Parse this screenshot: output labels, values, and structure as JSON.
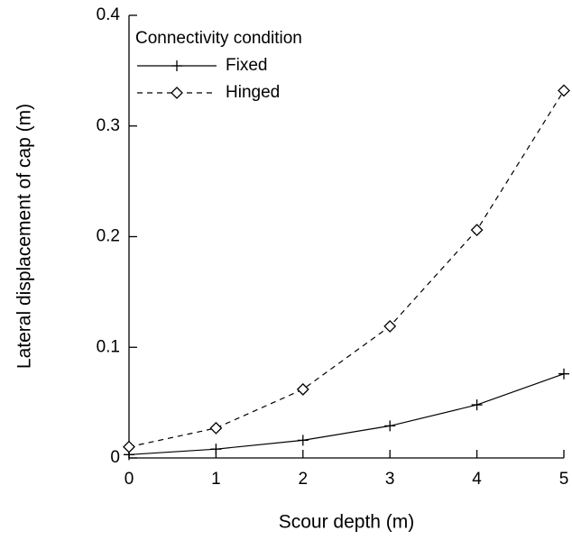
{
  "chart_data": {
    "type": "line",
    "x_label": "Scour depth (m)",
    "y_label": "Lateral displacement of cap (m)",
    "x": [
      0,
      1,
      2,
      3,
      4,
      5
    ],
    "series": [
      {
        "name": "Fixed",
        "color": "#000000",
        "line_style": "solid",
        "marker": "plus",
        "values": [
          0.003,
          0.008,
          0.016,
          0.029,
          0.048,
          0.076
        ]
      },
      {
        "name": "Hinged",
        "color": "#000000",
        "line_style": "dashed",
        "marker": "diamond",
        "values": [
          0.01,
          0.027,
          0.062,
          0.119,
          0.206,
          0.332
        ]
      }
    ],
    "legend_title": "Connectivity condition",
    "legend_position": "upper left",
    "xlim": [
      0,
      5
    ],
    "xticks": [
      0,
      1,
      2,
      3,
      4,
      5
    ],
    "ylim": [
      0,
      0.4
    ],
    "yticks": [
      0,
      0.1,
      0.2,
      0.3,
      0.4
    ],
    "grid": false
  }
}
